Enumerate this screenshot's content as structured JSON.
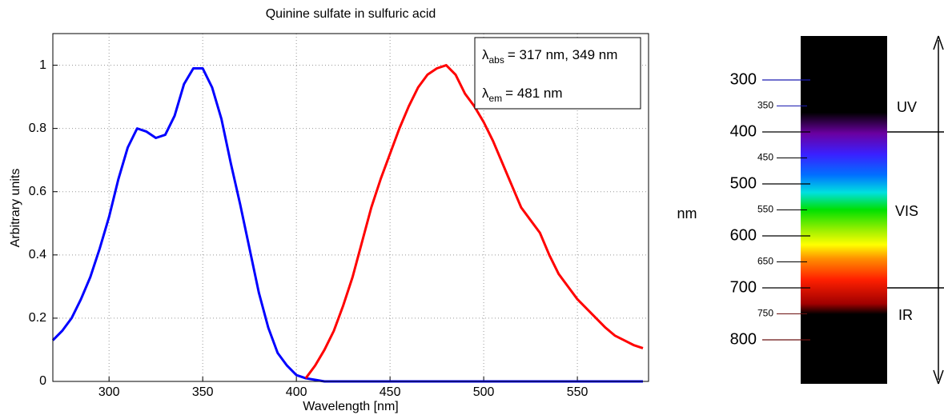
{
  "chart_data": [
    {
      "type": "line",
      "title": "Quinine sulfate in sulfuric acid",
      "x_label": "Wavelength [nm]",
      "y_label": "Arbitrary units",
      "x": [
        270,
        275,
        280,
        285,
        290,
        295,
        300,
        305,
        310,
        315,
        320,
        325,
        330,
        335,
        340,
        345,
        350,
        355,
        360,
        365,
        370,
        375,
        380,
        385,
        390,
        395,
        400,
        405,
        410,
        415,
        420,
        425,
        430,
        435,
        440,
        445,
        450,
        455,
        460,
        465,
        470,
        475,
        480,
        485,
        490,
        495,
        500,
        505,
        510,
        515,
        520,
        525,
        530,
        535,
        540,
        545,
        550,
        555,
        560,
        565,
        570,
        575,
        580,
        585
      ],
      "series": [
        {
          "color": "#0000ff",
          "values": [
            0.13,
            0.16,
            0.2,
            0.26,
            0.33,
            0.42,
            0.52,
            0.64,
            0.74,
            0.8,
            0.79,
            0.77,
            0.78,
            0.84,
            0.94,
            0.99,
            0.99,
            0.93,
            0.83,
            0.69,
            0.56,
            0.42,
            0.28,
            0.17,
            0.09,
            0.05,
            0.02,
            0.01,
            0.005,
            0,
            0,
            0,
            0,
            0,
            0,
            0,
            0,
            0,
            0,
            0,
            0,
            0,
            0,
            0,
            0,
            0,
            0,
            0,
            0,
            0,
            0,
            0,
            0,
            0,
            0,
            0,
            0,
            0,
            0,
            0,
            0,
            0,
            0,
            0
          ]
        },
        {
          "color": "#ff0000",
          "values": [
            null,
            null,
            null,
            null,
            null,
            null,
            null,
            null,
            null,
            null,
            null,
            null,
            null,
            null,
            null,
            null,
            null,
            null,
            null,
            null,
            null,
            null,
            null,
            null,
            null,
            null,
            null,
            0.01,
            0.05,
            0.1,
            0.16,
            0.24,
            0.33,
            0.44,
            0.55,
            0.64,
            0.72,
            0.8,
            0.87,
            0.93,
            0.97,
            0.99,
            1.0,
            0.97,
            0.91,
            0.87,
            0.82,
            0.76,
            0.69,
            0.62,
            0.55,
            0.51,
            0.47,
            0.4,
            0.34,
            0.3,
            0.26,
            0.23,
            0.2,
            0.17,
            0.145,
            0.13,
            0.115,
            0.105
          ]
        }
      ],
      "annotations": [
        {
          "symbol": "λ",
          "sub": "abs",
          "text": "= 317 nm, 349 nm"
        },
        {
          "symbol": "λ",
          "sub": "em",
          "text": "= 481 nm"
        }
      ],
      "xlim": [
        270,
        588
      ],
      "ylim": [
        0,
        1.1
      ],
      "xticks": [
        300,
        350,
        400,
        450,
        500,
        550
      ],
      "yticks": [
        0,
        0.2,
        0.4,
        0.6,
        0.8,
        1
      ],
      "grid": true
    },
    {
      "type": "scale",
      "unit": "nm",
      "ylim": [
        300,
        800
      ],
      "yticks": [
        300,
        400,
        500,
        600,
        700,
        800
      ],
      "minor_ticks": [
        350,
        450,
        550,
        650,
        750
      ],
      "boundaries": [
        400,
        700
      ],
      "bands": [
        {
          "name": "UV",
          "color": "#1a1ab0"
        },
        {
          "name": "VIS",
          "color": "#000000"
        },
        {
          "name": "IR",
          "color": "#6b1010"
        }
      ]
    }
  ]
}
